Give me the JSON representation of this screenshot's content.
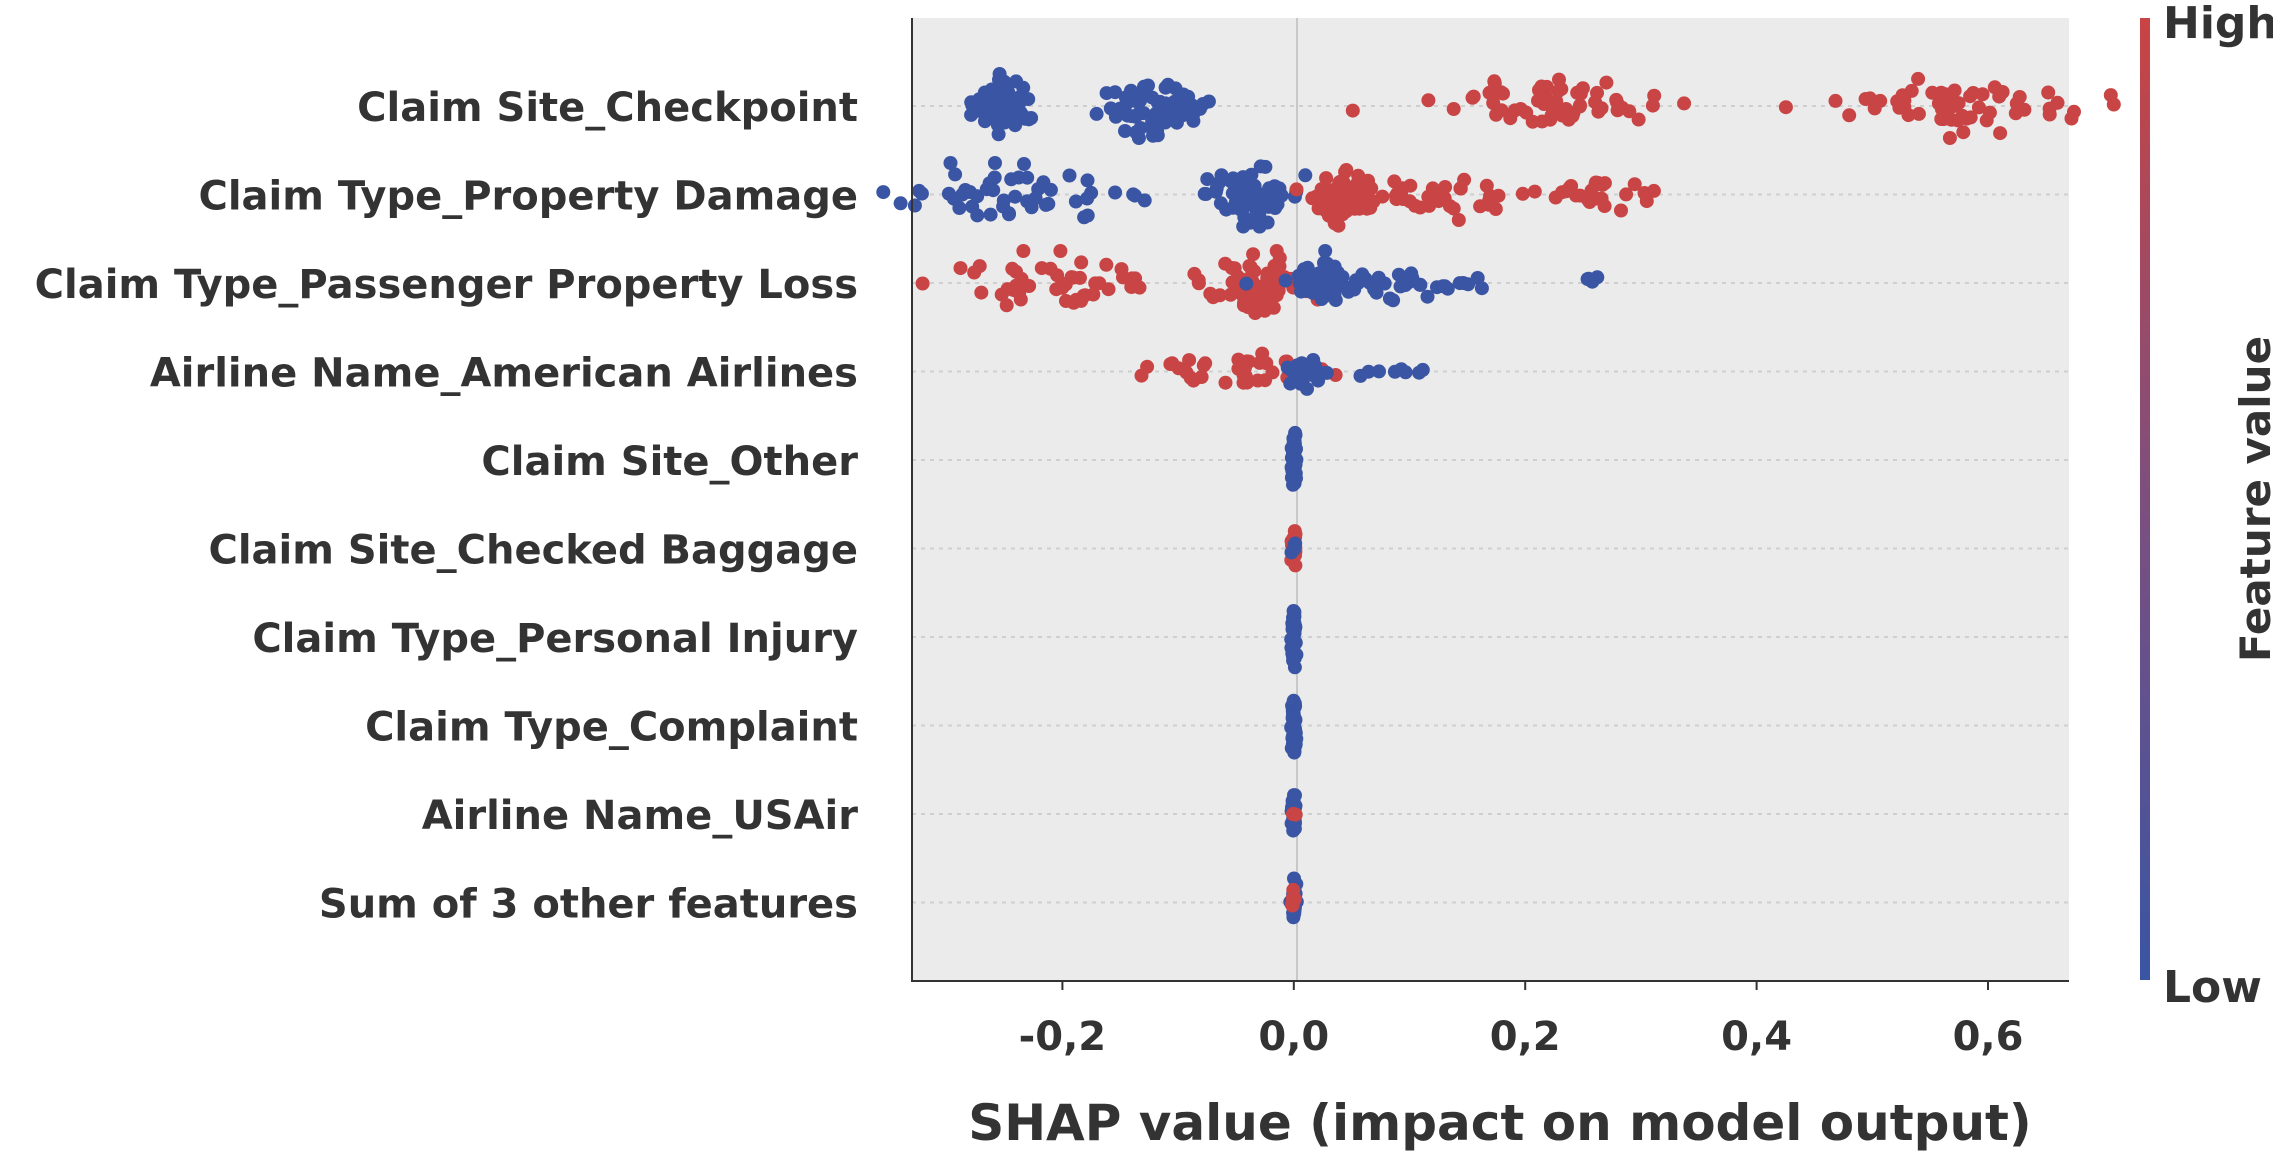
{
  "chart_data": {
    "type": "scatter",
    "subtype": "shap-beeswarm",
    "xlabel": "SHAP value (impact on model output)",
    "ylabel": "",
    "xlim": [
      -0.33,
      0.67
    ],
    "xticks": [
      -0.2,
      0.0,
      0.2,
      0.4,
      0.6
    ],
    "xtick_labels": [
      "-0,2",
      "0,0",
      "0,2",
      "0,4",
      "0,6"
    ],
    "grid": "dotted horizontal lines per feature",
    "zero_line": true,
    "colorbar": {
      "label": "Feature value",
      "high_label": "High",
      "low_label": "Low",
      "high_color": "#c94444",
      "low_color": "#3a55a4"
    },
    "features": [
      {
        "name": "Claim Site_Checkpoint",
        "clusters": [
          {
            "center": -0.25,
            "spread": 0.014,
            "count": 60,
            "value": "low"
          },
          {
            "center": -0.12,
            "spread": 0.022,
            "count": 70,
            "value": "low"
          },
          {
            "center": 0.225,
            "spread": 0.05,
            "count": 60,
            "value": "high"
          },
          {
            "center": 0.57,
            "spread": 0.05,
            "count": 60,
            "value": "high"
          }
        ]
      },
      {
        "name": "Claim Type_Property Damage",
        "clusters": [
          {
            "center": -0.235,
            "spread": 0.06,
            "count": 50,
            "value": "low"
          },
          {
            "center": -0.035,
            "spread": 0.02,
            "count": 70,
            "value": "low"
          },
          {
            "center": 0.042,
            "spread": 0.015,
            "count": 60,
            "value": "high"
          },
          {
            "center": 0.13,
            "spread": 0.04,
            "count": 40,
            "value": "high"
          },
          {
            "center": 0.265,
            "spread": 0.03,
            "count": 25,
            "value": "high"
          }
        ]
      },
      {
        "name": "Claim Type_Passenger Property Loss",
        "clusters": [
          {
            "center": -0.205,
            "spread": 0.05,
            "count": 50,
            "value": "high"
          },
          {
            "center": -0.03,
            "spread": 0.025,
            "count": 70,
            "value": "high"
          },
          {
            "center": 0.03,
            "spread": 0.015,
            "count": 55,
            "value": "low"
          },
          {
            "center": 0.09,
            "spread": 0.045,
            "count": 30,
            "value": "low"
          },
          {
            "center": 0.258,
            "spread": 0.004,
            "count": 4,
            "value": "low"
          }
        ]
      },
      {
        "name": "Airline Name_American Airlines",
        "clusters": [
          {
            "center": -0.1,
            "spread": 0.003,
            "count": 3,
            "value": "high"
          },
          {
            "center": -0.04,
            "spread": 0.035,
            "count": 35,
            "value": "high"
          },
          {
            "center": 0.005,
            "spread": 0.01,
            "count": 30,
            "value": "low"
          },
          {
            "center": 0.08,
            "spread": 0.018,
            "count": 8,
            "value": "low"
          }
        ]
      },
      {
        "name": "Claim Site_Other",
        "clusters": [
          {
            "center": 0.0,
            "spread": 0.001,
            "count": 40,
            "value": "low"
          }
        ]
      },
      {
        "name": "Claim Site_Checked Baggage",
        "clusters": [
          {
            "center": 0.0,
            "spread": 0.001,
            "count": 20,
            "value": "high"
          },
          {
            "center": 0.0,
            "spread": 0.001,
            "count": 5,
            "value": "low"
          }
        ]
      },
      {
        "name": "Claim Type_Personal Injury",
        "clusters": [
          {
            "center": 0.0,
            "spread": 0.001,
            "count": 45,
            "value": "low"
          }
        ]
      },
      {
        "name": "Claim Type_Complaint",
        "clusters": [
          {
            "center": 0.0,
            "spread": 0.001,
            "count": 45,
            "value": "low"
          }
        ]
      },
      {
        "name": "Airline Name_USAir",
        "clusters": [
          {
            "center": 0.0,
            "spread": 0.001,
            "count": 30,
            "value": "low"
          },
          {
            "center": 0.0,
            "spread": 0.001,
            "count": 3,
            "value": "high"
          }
        ]
      },
      {
        "name": "Sum of 3 other features",
        "clusters": [
          {
            "center": 0.0,
            "spread": 0.001,
            "count": 30,
            "value": "low"
          },
          {
            "center": 0.0,
            "spread": 0.001,
            "count": 8,
            "value": "high"
          }
        ]
      }
    ]
  }
}
